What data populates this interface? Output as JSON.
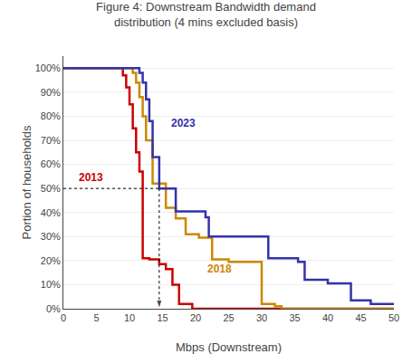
{
  "chart_data": {
    "type": "line",
    "title": "Figure 4: Downstream Bandwidth demand\ndistribution (4 mins excluded basis)",
    "xlabel": "Mbps (Downstream)",
    "ylabel": "Portion of households",
    "xlim": [
      0,
      50
    ],
    "ylim": [
      0,
      1.05
    ],
    "xticks": [
      0,
      5,
      10,
      15,
      20,
      25,
      30,
      35,
      40,
      45,
      50
    ],
    "yticks": [
      {
        "value": 0,
        "label": "0%"
      },
      {
        "value": 0.1,
        "label": "10%"
      },
      {
        "value": 0.2,
        "label": "20%"
      },
      {
        "value": 0.3,
        "label": "30%"
      },
      {
        "value": 0.4,
        "label": "40%"
      },
      {
        "value": 0.5,
        "label": "50%"
      },
      {
        "value": 0.6,
        "label": "60%"
      },
      {
        "value": 0.7,
        "label": "70%"
      },
      {
        "value": 0.8,
        "label": "80%"
      },
      {
        "value": 0.9,
        "label": "90%"
      },
      {
        "value": 1.0,
        "label": "100%"
      }
    ],
    "grid": "y",
    "series": [
      {
        "color": "#cc0000",
        "line_style": "solid",
        "x": [
          0,
          9.0,
          9.0,
          9.5,
          9.5,
          10.0,
          10.0,
          10.5,
          10.5,
          11.0,
          11.0,
          11.5,
          11.5,
          12.0,
          12.0,
          13.0,
          13.0,
          14.5,
          14.5,
          15.5,
          15.5,
          16.5,
          16.5,
          17.5,
          17.5,
          19.5,
          19.5,
          50
        ],
        "values": [
          1.0,
          1.0,
          0.97,
          0.97,
          0.92,
          0.92,
          0.85,
          0.85,
          0.75,
          0.75,
          0.65,
          0.65,
          0.57,
          0.57,
          0.21,
          0.21,
          0.205,
          0.205,
          0.185,
          0.185,
          0.165,
          0.165,
          0.1,
          0.1,
          0.02,
          0.02,
          0.0,
          0.0
        ]
      },
      {
        "color": "#cc8800",
        "line_style": "solid",
        "x": [
          0,
          10.5,
          10.5,
          11.0,
          11.0,
          11.5,
          11.5,
          12.0,
          12.0,
          12.5,
          12.5,
          13.5,
          13.5,
          15.5,
          15.5,
          17.0,
          17.0,
          18.5,
          18.5,
          20.5,
          20.5,
          22.5,
          22.5,
          25.0,
          25.0,
          30.0,
          30.0,
          32.0,
          32.0,
          33.0,
          33.0,
          50
        ],
        "values": [
          1.0,
          1.0,
          0.98,
          0.98,
          0.94,
          0.94,
          0.88,
          0.88,
          0.8,
          0.8,
          0.7,
          0.7,
          0.52,
          0.52,
          0.42,
          0.42,
          0.375,
          0.375,
          0.31,
          0.31,
          0.295,
          0.295,
          0.205,
          0.205,
          0.195,
          0.195,
          0.02,
          0.02,
          0.01,
          0.01,
          0.0,
          0.0
        ]
      },
      {
        "color": "#3333aa",
        "line_style": "solid",
        "x": [
          0,
          11.5,
          11.5,
          12.0,
          12.0,
          12.5,
          12.5,
          13.0,
          13.0,
          13.5,
          13.5,
          14.5,
          14.5,
          17.0,
          17.0,
          21.5,
          21.5,
          22.0,
          22.0,
          31.0,
          31.0,
          35.5,
          35.5,
          36.5,
          36.5,
          40.0,
          40.0,
          43.5,
          43.5,
          46.5,
          46.5,
          50
        ],
        "values": [
          1.0,
          1.0,
          0.98,
          0.98,
          0.94,
          0.94,
          0.87,
          0.87,
          0.78,
          0.78,
          0.63,
          0.63,
          0.5,
          0.5,
          0.405,
          0.405,
          0.38,
          0.38,
          0.3,
          0.3,
          0.21,
          0.21,
          0.195,
          0.195,
          0.12,
          0.12,
          0.105,
          0.105,
          0.035,
          0.035,
          0.02,
          0.02
        ]
      },
      {
        "color": "black",
        "line_style": "dotted",
        "x": [
          0,
          14.5
        ],
        "values": [
          0.5,
          0.5
        ]
      },
      {
        "color": "black",
        "line_style": "dotted",
        "marker": "arrow",
        "x": [
          14.5,
          14.5
        ],
        "values": [
          0.5,
          0.0
        ]
      }
    ],
    "annotations": [
      {
        "text": "2013",
        "x": 2.0,
        "y": 0.545,
        "color": "#cc0000"
      },
      {
        "text": "2018",
        "x": 21.5,
        "y": 0.165,
        "color": "#cc8800"
      },
      {
        "text": "2023",
        "x": 16.0,
        "y": 0.77,
        "color": "#3333aa"
      }
    ]
  }
}
